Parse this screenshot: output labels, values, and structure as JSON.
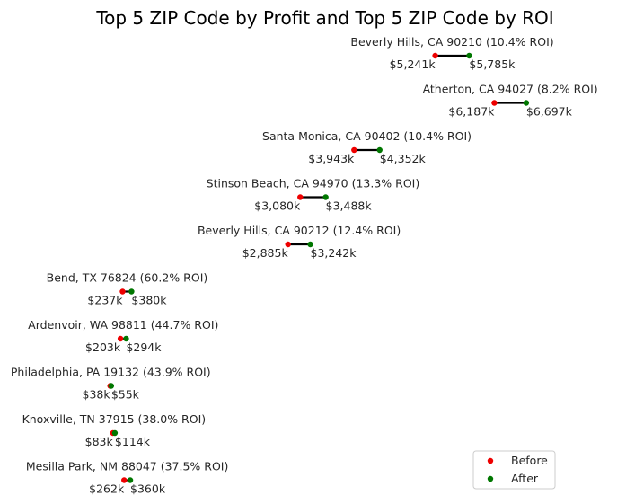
{
  "chart_data": {
    "type": "dumbbell",
    "title": "Top 5 ZIP Code by Profit and Top 5 ZIP Code by ROI",
    "xlabel": "",
    "ylabel": "",
    "value_unit": "$k",
    "grid": false,
    "legend_position": "bottom-right",
    "series": [
      {
        "name": "Before",
        "color": "#ee0000"
      },
      {
        "name": "After",
        "color": "#007700"
      }
    ],
    "rows": [
      {
        "label": "Beverly Hills, CA 90210 (10.4% ROI)",
        "before": 5241,
        "after": 5785,
        "before_label": "$5,241k",
        "after_label": "$5,785k"
      },
      {
        "label": "Atherton, CA 94027 (8.2% ROI)",
        "before": 6187,
        "after": 6697,
        "before_label": "$6,187k",
        "after_label": "$6,697k"
      },
      {
        "label": "Santa Monica, CA 90402 (10.4% ROI)",
        "before": 3943,
        "after": 4352,
        "before_label": "$3,943k",
        "after_label": "$4,352k"
      },
      {
        "label": "Stinson Beach, CA 94970 (13.3% ROI)",
        "before": 3080,
        "after": 3488,
        "before_label": "$3,080k",
        "after_label": "$3,488k"
      },
      {
        "label": "Beverly Hills, CA 90212 (12.4% ROI)",
        "before": 2885,
        "after": 3242,
        "before_label": "$2,885k",
        "after_label": "$3,242k"
      },
      {
        "label": "Bend, TX 76824 (60.2% ROI)",
        "before": 237,
        "after": 380,
        "before_label": "$237k",
        "after_label": "$380k"
      },
      {
        "label": "Ardenvoir, WA 98811 (44.7% ROI)",
        "before": 203,
        "after": 294,
        "before_label": "$203k",
        "after_label": "$294k"
      },
      {
        "label": "Philadelphia, PA 19132 (43.9% ROI)",
        "before": 38,
        "after": 55,
        "before_label": "$38k",
        "after_label": "$55k"
      },
      {
        "label": "Knoxville, TN 37915 (38.0% ROI)",
        "before": 83,
        "after": 114,
        "before_label": "$83k",
        "after_label": "$114k"
      },
      {
        "label": "Mesilla Park, NM 88047 (37.5% ROI)",
        "before": 262,
        "after": 360,
        "before_label": "$262k",
        "after_label": "$360k"
      }
    ]
  }
}
